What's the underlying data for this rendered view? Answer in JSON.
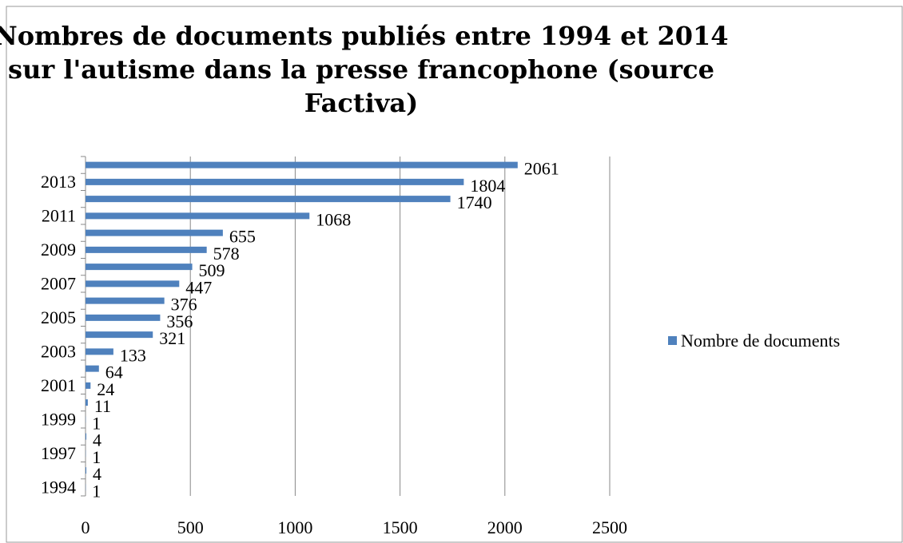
{
  "chart_data": {
    "type": "bar",
    "orientation": "horizontal",
    "title_lines": [
      "Nombres de documents publiés entre 1994 et 2014",
      "sur l'autisme dans la presse francophone (source",
      "Factiva)"
    ],
    "categories": [
      "1994",
      null,
      "1997",
      null,
      "1999",
      null,
      "2001",
      null,
      "2003",
      null,
      "2005",
      null,
      "2007",
      null,
      "2009",
      null,
      "2011",
      null,
      "2013",
      null
    ],
    "series": [
      {
        "name": "Nombre de documents",
        "color": "#4f81bd",
        "values": [
          1,
          4,
          1,
          4,
          1,
          11,
          24,
          64,
          133,
          321,
          356,
          376,
          447,
          509,
          578,
          655,
          1068,
          1740,
          1804,
          2061
        ]
      }
    ],
    "xlim": [
      0,
      2500
    ],
    "xticks": [
      0,
      500,
      1000,
      1500,
      2000,
      2500
    ],
    "grid": true,
    "legend": "right"
  }
}
